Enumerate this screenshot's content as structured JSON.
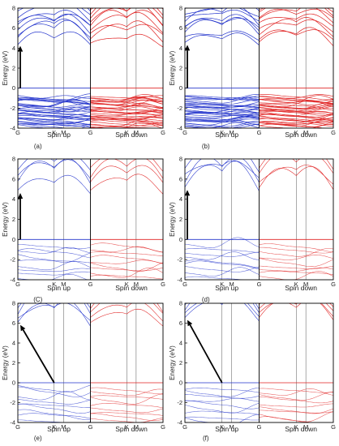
{
  "figure": {
    "colors": {
      "spin_up": "#2233cc",
      "spin_down": "#e02020",
      "spin_up_faint": "#5566dd",
      "spin_down_faint": "#e06060",
      "frame": "#000000",
      "kline": "#555555",
      "arrow": "#000000"
    }
  },
  "chart_data": [
    {
      "type": "line",
      "panel": "a",
      "caption": "(a)",
      "ylabel": "Energy (eV)",
      "ylim": [
        -4,
        8
      ],
      "yticks": [
        "-4",
        "-2",
        "0",
        "2",
        "4",
        "6",
        "8"
      ],
      "kpoints": [
        "G",
        "K",
        "M",
        "G",
        "K",
        "M",
        "G"
      ],
      "spin_up_label": "Spin up",
      "spin_down_label": "Spin down",
      "band_density": "dense",
      "gap": {
        "vbm": 0.0,
        "cbm": 4.3,
        "type": "direct",
        "arrow_from_x": 0.0,
        "arrow_to_x": 0.0
      },
      "valence_ranges": [
        [
          -4,
          -0.9
        ],
        [
          0,
          0
        ]
      ],
      "conduction_range": [
        4.3,
        8
      ]
    },
    {
      "type": "line",
      "panel": "b",
      "caption": "(b)",
      "ylabel": "Energy (eV)",
      "ylim": [
        -4,
        8
      ],
      "yticks": [
        "-4",
        "-2",
        "0",
        "2",
        "4",
        "6",
        "8"
      ],
      "kpoints": [
        "G",
        "K",
        "M",
        "G",
        "K",
        "M",
        "G"
      ],
      "spin_up_label": "Spin up",
      "spin_down_label": "Spin down",
      "band_density": "dense",
      "gap": {
        "vbm": 0.0,
        "cbm": 4.4,
        "type": "direct",
        "arrow_from_x": 0.0,
        "arrow_to_x": 0.0
      },
      "valence_ranges": [
        [
          -4,
          -0.9
        ],
        [
          0,
          0
        ]
      ],
      "conduction_range": [
        4.4,
        8
      ]
    },
    {
      "type": "line",
      "panel": "c",
      "caption": "(C)",
      "ylabel": "Energy (eV)",
      "ylim": [
        -4,
        8
      ],
      "yticks": [
        "-4",
        "-2",
        "0",
        "2",
        "4",
        "6",
        "8"
      ],
      "kpoints": [
        "G",
        "K",
        "M",
        "G",
        "K",
        "M",
        "G"
      ],
      "spin_up_label": "Spin up",
      "spin_down_label": "Spin down",
      "band_density": "sparse",
      "gap": {
        "vbm": 0.0,
        "cbm": 4.7,
        "type": "direct",
        "arrow_from_x": 0.0,
        "arrow_to_x": 0.0
      },
      "valence_ranges": [
        [
          -4,
          0
        ]
      ],
      "conduction_range": [
        4.7,
        8
      ]
    },
    {
      "type": "line",
      "panel": "d",
      "caption": "(d)",
      "ylabel": "Energy (eV)",
      "ylim": [
        -4,
        8
      ],
      "yticks": [
        "-4",
        "-2",
        "0",
        "2",
        "4",
        "6",
        "8"
      ],
      "kpoints": [
        "G",
        "K",
        "M",
        "G",
        "K",
        "M",
        "G"
      ],
      "spin_up_label": "Spin up",
      "spin_down_label": "Spin down",
      "band_density": "sparse",
      "gap": {
        "vbm": 0.0,
        "cbm": 5.0,
        "type": "direct",
        "arrow_from_x": 0.0,
        "arrow_to_x": 0.0
      },
      "valence_ranges": [
        [
          -4,
          0
        ]
      ],
      "conduction_range": [
        5.0,
        8
      ]
    },
    {
      "type": "line",
      "panel": "e",
      "caption": "(e)",
      "ylabel": "Energy (eV)",
      "ylim": [
        -4,
        8
      ],
      "yticks": [
        "-4",
        "-2",
        "0",
        "2",
        "4",
        "6",
        "8"
      ],
      "kpoints": [
        "G",
        "K",
        "M",
        "G",
        "K",
        "M",
        "G"
      ],
      "spin_up_label": "Spin up",
      "spin_down_label": "Spin down",
      "band_density": "sparse",
      "gap": {
        "vbm": 0.0,
        "cbm": 5.9,
        "type": "indirect",
        "arrow_from_x": 1.0,
        "arrow_to_x": 0.0
      },
      "valence_ranges": [
        [
          -4,
          0
        ]
      ],
      "conduction_range": [
        5.9,
        8
      ]
    },
    {
      "type": "line",
      "panel": "f",
      "caption": "(f)",
      "ylabel": "Energy (eV)",
      "ylim": [
        -4,
        8
      ],
      "yticks": [
        "-4",
        "-2",
        "0",
        "2",
        "4",
        "6",
        "8"
      ],
      "kpoints": [
        "G",
        "K",
        "M",
        "G",
        "K",
        "M",
        "G"
      ],
      "spin_up_label": "Spin up",
      "spin_down_label": "Spin down",
      "band_density": "sparse",
      "gap": {
        "vbm": 0.0,
        "cbm": 6.4,
        "type": "indirect",
        "arrow_from_x": 1.0,
        "arrow_to_x": 0.0
      },
      "valence_ranges": [
        [
          -4,
          0
        ]
      ],
      "conduction_range": [
        6.4,
        8
      ]
    }
  ]
}
